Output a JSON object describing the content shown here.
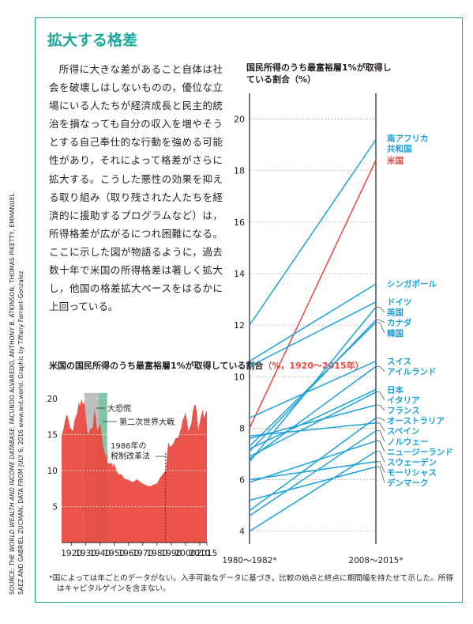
{
  "title": "拡大する格差",
  "body_text": "所得に大きな差があること自体は社会を破壊しはしないものの，優位な立場にいる人たちが経済成長と民主的統治を損なっても自分の収入を増やそうとする自己奉仕的な行動を強める可能性があり，それによって格差がさらに拡大する。こうした悪性の効果を抑える取り組み（取り残された人たちを経済的に援助するプログラムなど）は，所得格差が広がるにつれ困難になる。ここに示した図が物語るように，過去数十年で米国の所得格差は著しく拡大し，他国の格差拡大ペースをはるかに上回っている。",
  "source": {
    "label": "SOURCE: ",
    "italic": "THE WORLD WEALTH AND INCOME DATABASE",
    "rest": ", FACUNDO ALVAREDO, ANTHONY B. ATKINSON, THOMAS PIKETTY, EMMANUEL SAEZ AND GABRIEL ZUCMAN. DATA FROM JULY 6, 2016 www.wid.world. Graphic by Tiffany Farrant-Gonzalez"
  },
  "footnote": "*国によっては年ごとのデータがない。入手可能なデータに基づき，比較の始点と終点に期間幅を持たせて示した。所得はキャピタルゲインを含まない。",
  "colors": {
    "teal": "#1aa79d",
    "blue": "#1ba1dc",
    "red": "#e8473d",
    "gray": "#bcbec0",
    "green": "#7fc7a4"
  },
  "chart_data": [
    {
      "type": "line",
      "title": "国民所得のうち最富裕層1%が取得している割合（%）",
      "x": [
        "1980～1982*",
        "2008～2015*"
      ],
      "ylim": [
        3.5,
        21
      ],
      "yticks": [
        4,
        6,
        8,
        10,
        12,
        14,
        16,
        18,
        20
      ],
      "grid": true,
      "series": [
        {
          "name": "南アフリカ共和国",
          "values": [
            12.0,
            19.2
          ],
          "color": "#1ba1dc"
        },
        {
          "name": "米国",
          "values": [
            8.0,
            18.4
          ],
          "color": "#e8473d"
        },
        {
          "name": "シンガポール",
          "values": [
            10.6,
            13.6
          ],
          "color": "#1ba1dc"
        },
        {
          "name": "ドイツ",
          "values": [
            10.4,
            12.9
          ],
          "color": "#1ba1dc"
        },
        {
          "name": "英国",
          "values": [
            6.7,
            12.7
          ],
          "color": "#1ba1dc"
        },
        {
          "name": "カナダ",
          "values": [
            7.1,
            12.2
          ],
          "color": "#1ba1dc"
        },
        {
          "name": "韓国",
          "values": [
            7.3,
            12.1
          ],
          "color": "#1ba1dc"
        },
        {
          "name": "スイス",
          "values": [
            8.4,
            10.6
          ],
          "color": "#1ba1dc"
        },
        {
          "name": "アイルランド",
          "values": [
            6.8,
            10.4
          ],
          "color": "#1ba1dc"
        },
        {
          "name": "日本",
          "values": [
            7.2,
            9.5
          ],
          "color": "#1ba1dc"
        },
        {
          "name": "イタリア",
          "values": [
            6.9,
            9.4
          ],
          "color": "#1ba1dc"
        },
        {
          "name": "フランス",
          "values": [
            7.6,
            8.9
          ],
          "color": "#1ba1dc"
        },
        {
          "name": "オーストラリア",
          "values": [
            4.8,
            8.4
          ],
          "color": "#1ba1dc"
        },
        {
          "name": "スペイン",
          "values": [
            7.7,
            8.2
          ],
          "color": "#1ba1dc"
        },
        {
          "name": "ノルウェー",
          "values": [
            4.6,
            7.9
          ],
          "color": "#1ba1dc"
        },
        {
          "name": "ニュージーランド",
          "values": [
            5.9,
            7.5
          ],
          "color": "#1ba1dc"
        },
        {
          "name": "スウェーデン",
          "values": [
            4.0,
            7.1
          ],
          "color": "#1ba1dc"
        },
        {
          "name": "モーリシャス",
          "values": [
            6.0,
            6.7
          ],
          "color": "#1ba1dc"
        },
        {
          "name": "デンマーク",
          "values": [
            5.2,
            6.5
          ],
          "color": "#1ba1dc"
        }
      ]
    },
    {
      "type": "area",
      "title": "米国の国民所得のうち最富裕層1%が取得している割合",
      "title_unit": "（%，1920～2015年）",
      "xlim": [
        1913,
        2015
      ],
      "xticks": [
        1920,
        1930,
        1940,
        1950,
        1960,
        1970,
        1980,
        1990,
        2000,
        2010,
        2015
      ],
      "ylim": [
        0,
        21
      ],
      "yticks": [
        5,
        10,
        15,
        20
      ],
      "x": [
        1913,
        1914,
        1916,
        1917,
        1919,
        1921,
        1922,
        1924,
        1925,
        1926,
        1927,
        1928,
        1929,
        1930,
        1931,
        1932,
        1933,
        1935,
        1936,
        1937,
        1938,
        1939,
        1940,
        1941,
        1942,
        1943,
        1944,
        1945,
        1946,
        1947,
        1948,
        1949,
        1950,
        1951,
        1952,
        1953,
        1955,
        1957,
        1960,
        1963,
        1966,
        1969,
        1972,
        1975,
        1978,
        1980,
        1982,
        1984,
        1986,
        1987,
        1988,
        1989,
        1991,
        1993,
        1995,
        1997,
        1998,
        2000,
        2001,
        2002,
        2004,
        2005,
        2006,
        2007,
        2008,
        2009,
        2010,
        2012,
        2013,
        2014,
        2015
      ],
      "values": [
        15.0,
        15.5,
        17.5,
        17.8,
        16.0,
        15.5,
        17.0,
        18.0,
        19.5,
        19.0,
        20.0,
        19.2,
        19.5,
        17.5,
        15.5,
        15.0,
        15.8,
        16.0,
        18.5,
        17.5,
        15.5,
        16.0,
        16.5,
        15.3,
        13.5,
        12.7,
        11.8,
        12.5,
        12.8,
        11.8,
        11.5,
        10.5,
        11.0,
        10.3,
        9.8,
        9.5,
        9.5,
        8.9,
        8.7,
        8.4,
        8.8,
        8.3,
        8.0,
        7.8,
        8.1,
        8.2,
        9.0,
        9.5,
        10.0,
        12.3,
        14.0,
        13.3,
        13.6,
        14.5,
        14.6,
        16.0,
        17.0,
        18.0,
        17.0,
        15.5,
        16.5,
        18.0,
        19.0,
        19.2,
        18.0,
        15.5,
        16.8,
        18.5,
        17.3,
        18.0,
        18.3
      ],
      "annotations": [
        {
          "label": "大恐慌",
          "start": 1929,
          "end": 1939,
          "color": "#bcbec0"
        },
        {
          "label": "第二次世界大戦",
          "start": 1939,
          "end": 1945,
          "color": "#7fc7a4"
        },
        {
          "label": "1986年の税制改革法",
          "at": 1986
        }
      ]
    }
  ]
}
